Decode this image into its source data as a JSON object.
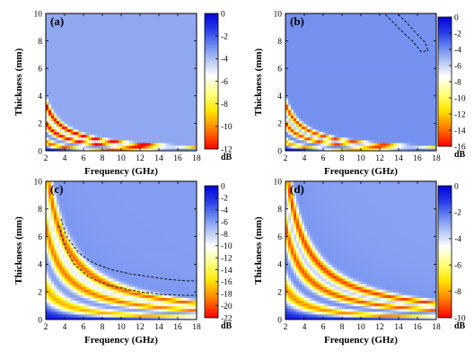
{
  "chart_data": [
    {
      "type": "heatmap",
      "panel_label": "(a)",
      "xlabel": "Frequency (GHz)",
      "ylabel": "Thickness (mm)",
      "xlim": [
        2,
        18
      ],
      "ylim": [
        0,
        10
      ],
      "x_ticks": [
        2,
        4,
        6,
        8,
        10,
        12,
        14,
        16,
        18
      ],
      "y_ticks": [
        0,
        2,
        4,
        6,
        8,
        10
      ],
      "colorbar": {
        "min": -12,
        "max": 0,
        "ticks": [
          0,
          -2,
          -4,
          -6,
          -8,
          -10,
          -12
        ],
        "unit": "dB"
      },
      "field": {
        "k": 1.8,
        "tbase": 0.06,
        "lossPower": 1.2,
        "baseDepth": 3.5,
        "dipGain": 9.0,
        "width": 0.3,
        "cap": -12.3
      },
      "dashed_contours": []
    },
    {
      "type": "heatmap",
      "panel_label": "(b)",
      "xlabel": "Frequency (GHz)",
      "ylabel": "Thickness (mm)",
      "xlim": [
        2,
        18
      ],
      "ylim": [
        0,
        10
      ],
      "x_ticks": [
        2,
        4,
        6,
        8,
        10,
        12,
        14,
        16,
        18
      ],
      "y_ticks": [
        0,
        2,
        4,
        6,
        8,
        10
      ],
      "colorbar": {
        "min": -16,
        "max": 0,
        "ticks": [
          0,
          -2,
          -4,
          -6,
          -8,
          -10,
          -12,
          -14,
          -16
        ],
        "unit": "dB"
      },
      "field": {
        "k": 1.8,
        "tbase": 0.06,
        "lossPower": 1.6,
        "baseDepth": 4.0,
        "dipGain": 11.0,
        "width": 0.3,
        "cap": -15.8
      },
      "dashed_contours": [
        [
          [
            12.6,
            9.9
          ],
          [
            13.5,
            9.3
          ],
          [
            14.5,
            8.6
          ],
          [
            15.6,
            7.9
          ],
          [
            16.4,
            7.2
          ],
          [
            17.1,
            7.3
          ],
          [
            16.8,
            7.9
          ],
          [
            15.8,
            8.6
          ],
          [
            14.9,
            9.3
          ],
          [
            14.0,
            9.9
          ]
        ]
      ]
    },
    {
      "type": "heatmap",
      "panel_label": "(c)",
      "xlabel": "Frequency (GHz)",
      "ylabel": "Thickness (mm)",
      "xlim": [
        2,
        18
      ],
      "ylim": [
        0,
        10
      ],
      "x_ticks": [
        2,
        4,
        6,
        8,
        10,
        12,
        14,
        16,
        18
      ],
      "y_ticks": [
        0,
        2,
        4,
        6,
        8,
        10
      ],
      "colorbar": {
        "min": -22,
        "max": 0,
        "ticks": [
          0,
          -2,
          -4,
          -6,
          -8,
          -10,
          -12,
          -14,
          -16,
          -18,
          -20,
          -22
        ],
        "unit": "dB"
      },
      "field": {
        "k": 0.55,
        "tbase": 0.08,
        "lossPower": 0.7,
        "baseDepth": 6.0,
        "dipGain": 14.0,
        "width": 0.35,
        "cap": -22
      },
      "dashed_contours": [
        [
          [
            3.6,
            7.3
          ],
          [
            4.2,
            6.0
          ],
          [
            5.5,
            4.8
          ],
          [
            7.0,
            4.1
          ],
          [
            9.0,
            3.6
          ],
          [
            11.0,
            3.3
          ],
          [
            13.0,
            3.1
          ],
          [
            15.0,
            2.9
          ],
          [
            17.0,
            2.8
          ],
          [
            18.0,
            2.8
          ]
        ],
        [
          [
            3.4,
            6.8
          ],
          [
            4.0,
            5.3
          ],
          [
            5.0,
            4.0
          ],
          [
            6.5,
            3.1
          ],
          [
            8.5,
            2.5
          ],
          [
            10.5,
            2.2
          ],
          [
            12.5,
            1.95
          ],
          [
            14.5,
            1.8
          ],
          [
            16.5,
            1.75
          ],
          [
            18.0,
            1.75
          ]
        ]
      ]
    },
    {
      "type": "heatmap",
      "panel_label": "(d)",
      "xlabel": "Frequency (GHz)",
      "ylabel": "Thickness (mm)",
      "xlim": [
        2,
        18
      ],
      "ylim": [
        0,
        10
      ],
      "x_ticks": [
        2,
        4,
        6,
        8,
        10,
        12,
        14,
        16,
        18
      ],
      "y_ticks": [
        0,
        2,
        4,
        6,
        8,
        10
      ],
      "colorbar": {
        "min": -10,
        "max": 0,
        "ticks": [
          0,
          -2,
          -4,
          -6,
          -8,
          -10
        ],
        "unit": "dB"
      },
      "field": {
        "k": 0.55,
        "tbase": 0.07,
        "lossPower": 0.6,
        "baseDepth": 2.8,
        "dipGain": 6.8,
        "width": 0.32,
        "cap": -9.6
      },
      "dashed_contours": []
    }
  ]
}
